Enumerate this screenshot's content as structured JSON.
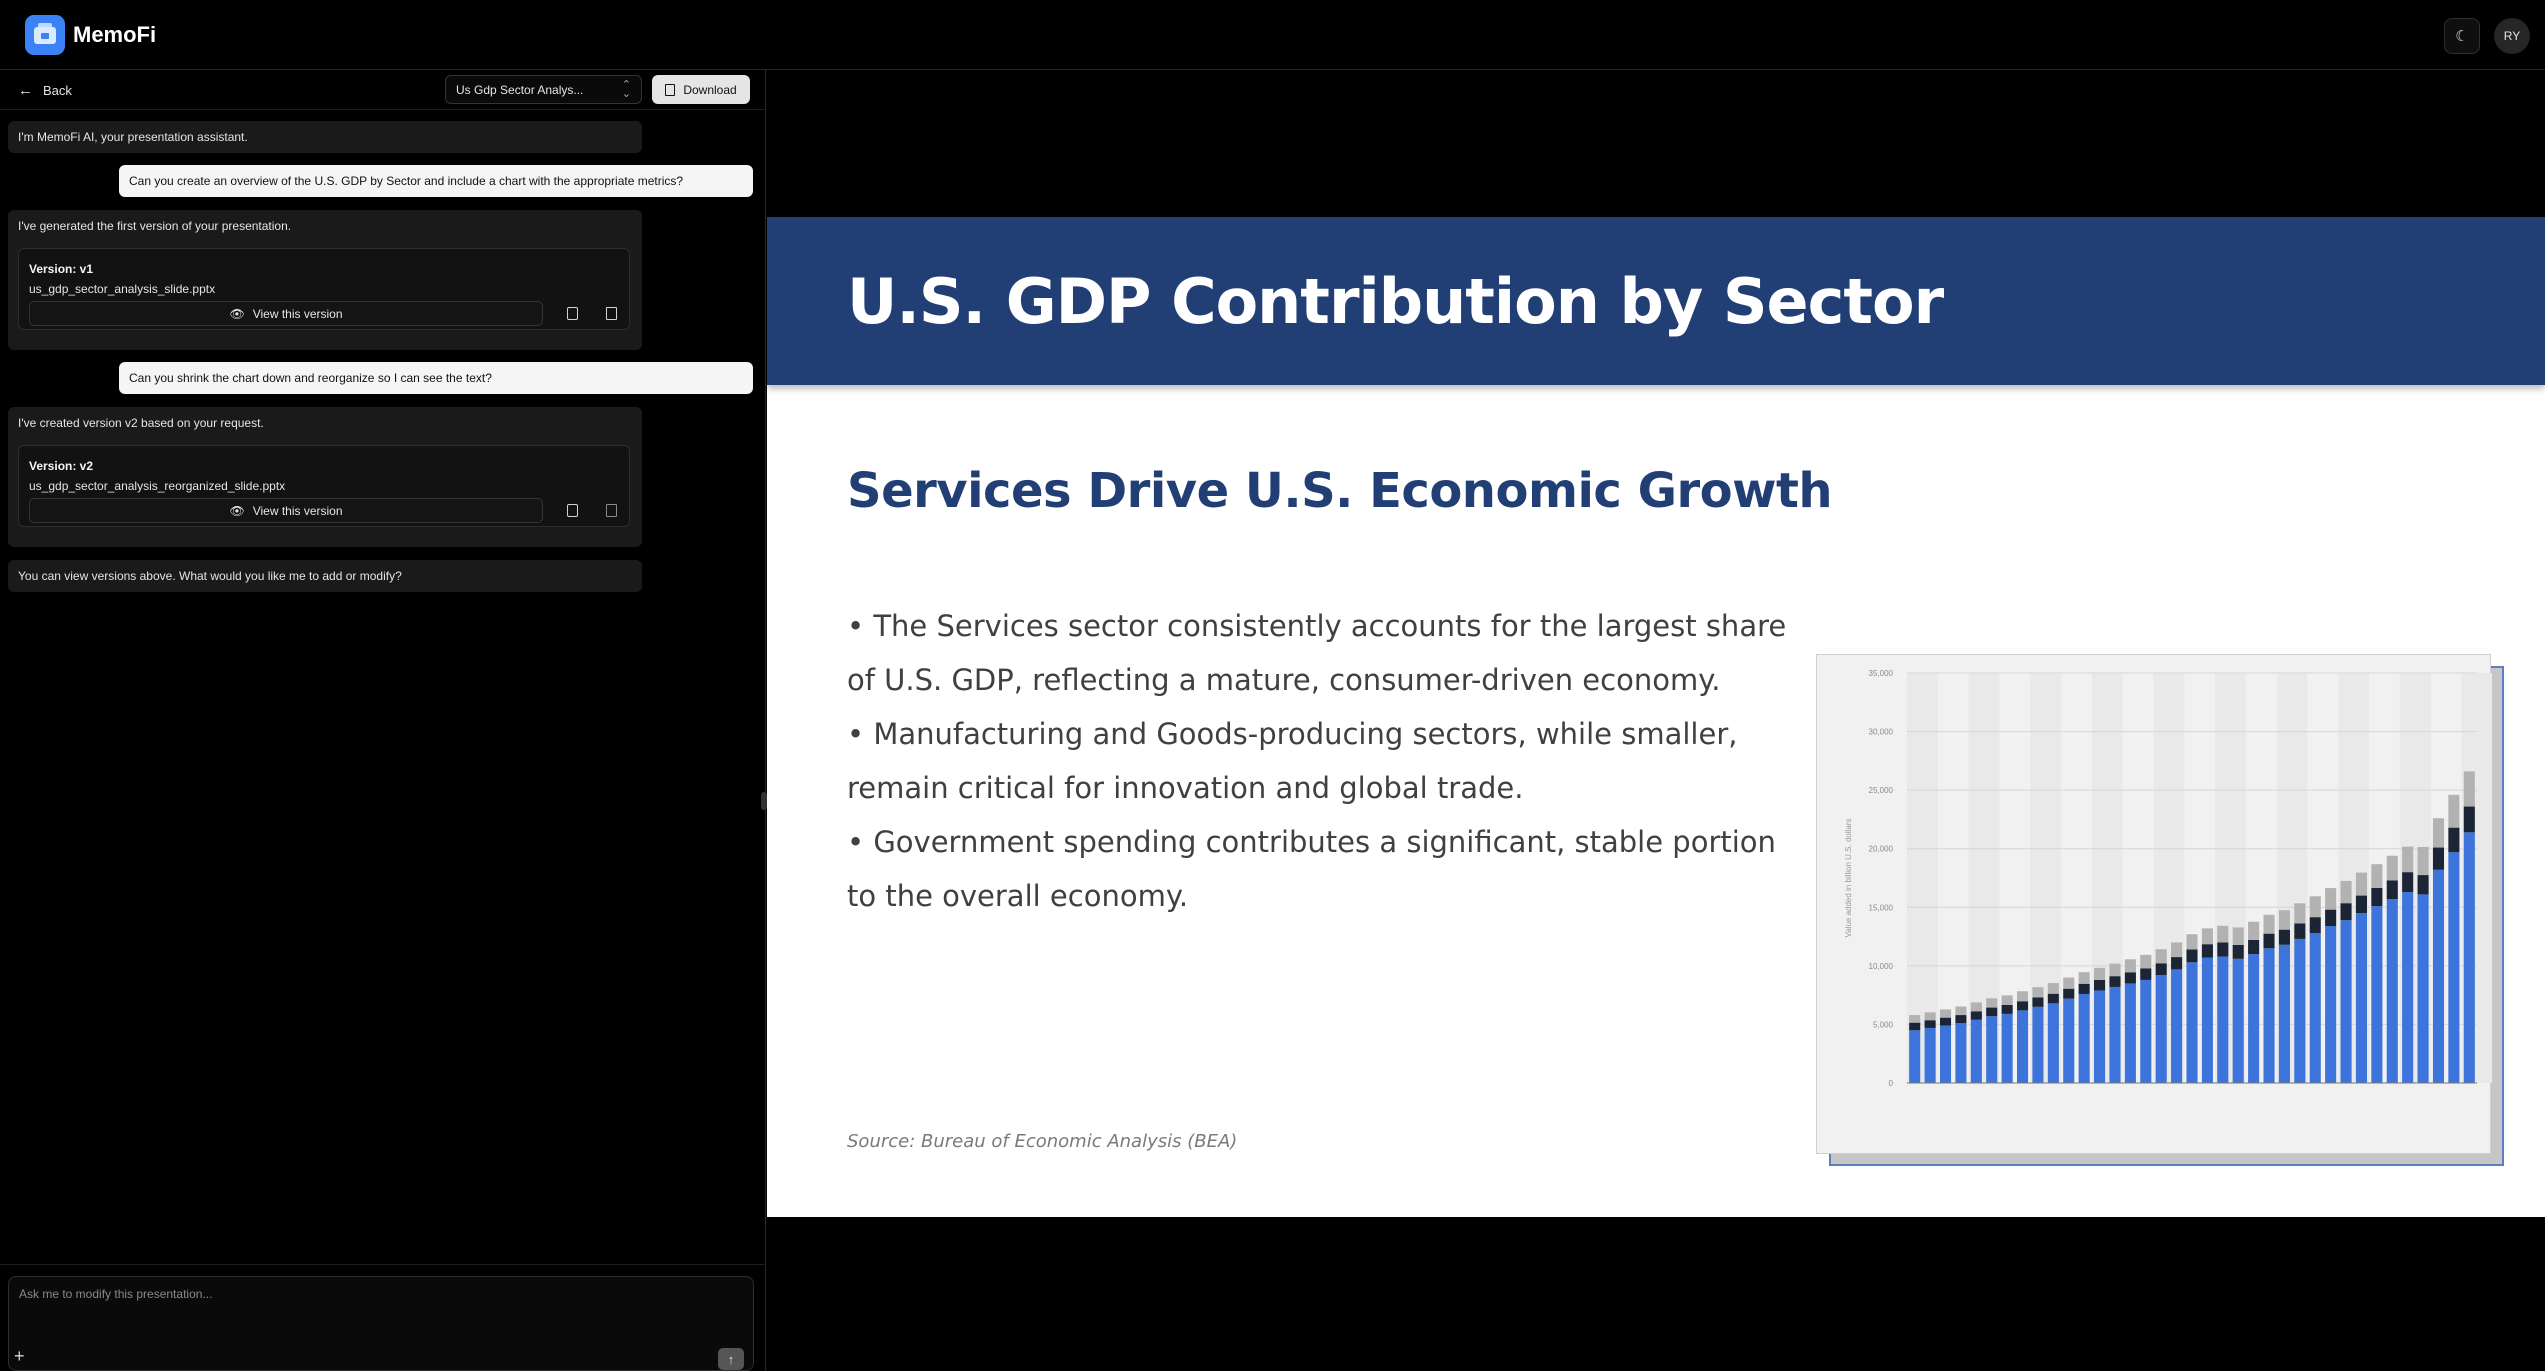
{
  "app": {
    "title": "MemoFi",
    "theme_icon": "moon-icon",
    "avatar_initials": "RY"
  },
  "chat_header": {
    "back_label": "Back",
    "presentation_select": "Us Gdp Sector Analys...",
    "download_label": "Download"
  },
  "messages": [
    {
      "role": "assistant",
      "text": "I'm MemoFi AI, your presentation assistant."
    },
    {
      "role": "user",
      "text": "Can you create an overview of the U.S. GDP by Sector and include a chart with the appropriate metrics?"
    },
    {
      "role": "assistant",
      "text": "I've generated the first version of your presentation.",
      "version": {
        "title": "Version: v1",
        "file": "us_gdp_sector_analysis_slide.pptx",
        "view_label": "View this version"
      }
    },
    {
      "role": "user",
      "text": "Can you shrink the chart down and reorganize so I can see the text?"
    },
    {
      "role": "assistant",
      "text": "I've created version v2 based on your request.",
      "version": {
        "title": "Version: v2",
        "file": "us_gdp_sector_analysis_reorganized_slide.pptx",
        "view_label": "View this version"
      }
    },
    {
      "role": "assistant",
      "text": "You can view versions above. What would you like me to add or modify?"
    }
  ],
  "chat_input": {
    "placeholder": "Ask me to modify this presentation..."
  },
  "slide": {
    "title": "U.S. GDP Contribution by Sector",
    "subtitle": "Services Drive U.S. Economic Growth",
    "bullets": [
      "• The Services sector consistently accounts for the largest share of U.S. GDP, reflecting a mature, consumer-driven economy.",
      "• Manufacturing and Goods-producing sectors, while smaller, remain critical for innovation and global trade.",
      "• Government spending contributes a significant, stable portion to the overall economy."
    ],
    "source": "Source: Bureau of Economic Analysis (BEA)",
    "colors": {
      "band": "#213e75",
      "services": "#3d74db",
      "manufacturing": "#1b2536",
      "government": "#b2b2b2"
    }
  },
  "chart_data": {
    "type": "bar",
    "stacked": true,
    "ylabel": "Value added in billion U.S. dollars",
    "ylim": [
      0,
      35000
    ],
    "yticks": [
      "0",
      "5,000",
      "10,000",
      "15,000",
      "20,000",
      "25,000",
      "30,000",
      "35,000"
    ],
    "grid": true,
    "series": [
      {
        "values": [
          4500,
          4700,
          4900,
          5100,
          5400,
          5700,
          5900,
          6200,
          6500,
          6800,
          7200,
          7600,
          7900,
          8200,
          8500,
          8800,
          9200,
          9700,
          10300,
          10700,
          10800,
          10600,
          11000,
          11500,
          11800,
          12300,
          12800,
          13400,
          13900,
          14500,
          15100,
          15700,
          16300,
          16100,
          18200,
          19700,
          21400
        ]
      },
      {
        "values": [
          650,
          660,
          680,
          700,
          720,
          740,
          760,
          780,
          800,
          820,
          850,
          870,
          900,
          920,
          950,
          990,
          1020,
          1050,
          1100,
          1150,
          1200,
          1180,
          1210,
          1250,
          1290,
          1320,
          1360,
          1400,
          1450,
          1500,
          1550,
          1600,
          1700,
          1650,
          1900,
          2100,
          2200
        ]
      },
      {
        "values": [
          650,
          670,
          700,
          730,
          760,
          790,
          820,
          850,
          880,
          910,
          950,
          990,
          1030,
          1070,
          1110,
          1150,
          1200,
          1250,
          1300,
          1350,
          1420,
          1500,
          1560,
          1610,
          1660,
          1720,
          1780,
          1840,
          1900,
          1960,
          2030,
          2100,
          2180,
          2400,
          2500,
          2800,
          3000
        ]
      }
    ]
  }
}
